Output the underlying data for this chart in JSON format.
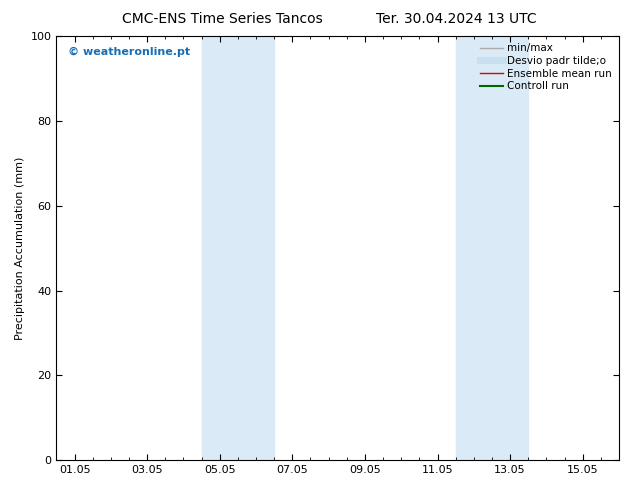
{
  "title_left": "CMC-ENS Time Series Tancos",
  "title_right": "Ter. 30.04.2024 13 UTC",
  "ylabel": "Precipitation Accumulation (mm)",
  "ylim": [
    0,
    100
  ],
  "yticks": [
    0,
    20,
    40,
    60,
    80,
    100
  ],
  "xtick_labels": [
    "01.05",
    "03.05",
    "05.05",
    "07.05",
    "09.05",
    "11.05",
    "13.05",
    "15.05"
  ],
  "xtick_positions": [
    0,
    2,
    4,
    6,
    8,
    10,
    12,
    14
  ],
  "xlim": [
    -0.5,
    15.0
  ],
  "bg_color": "#ffffff",
  "plot_bg_color": "#ffffff",
  "shaded_bands": [
    {
      "x_start": 3.5,
      "x_end": 5.5,
      "color": "#daeaf7"
    },
    {
      "x_start": 10.5,
      "x_end": 12.5,
      "color": "#daeaf7"
    }
  ],
  "watermark_text": "© weatheronline.pt",
  "watermark_color": "#1a6eb5",
  "legend_items": [
    {
      "label": "min/max",
      "color": "#aaaaaa",
      "lw": 1.0,
      "ls": "-"
    },
    {
      "label": "Desvio padr tilde;o",
      "color": "#c8dff0",
      "lw": 5,
      "ls": "-"
    },
    {
      "label": "Ensemble mean run",
      "color": "#dd0000",
      "lw": 1.0,
      "ls": "-"
    },
    {
      "label": "Controll run",
      "color": "#006600",
      "lw": 1.5,
      "ls": "-"
    }
  ],
  "title_fontsize": 10,
  "axis_label_fontsize": 8,
  "tick_fontsize": 8,
  "legend_fontsize": 7.5,
  "watermark_fontsize": 8
}
